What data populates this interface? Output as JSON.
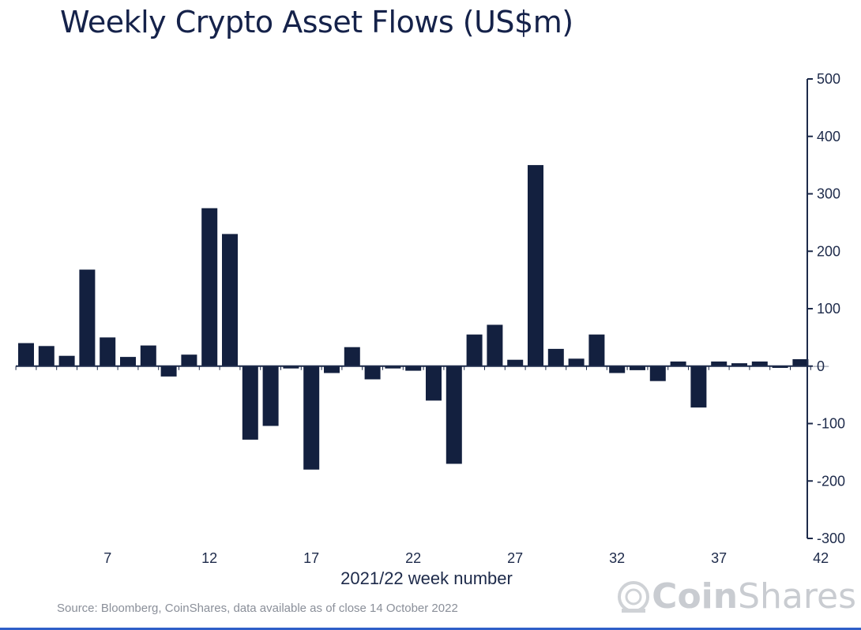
{
  "title": "Weekly Crypto Asset Flows (US$m)",
  "source": "Source: Bloomberg, CoinShares, data available as of close 14 October 2022",
  "logo": {
    "part1": "Coin",
    "part2": "Shares"
  },
  "colors": {
    "bar": "#13203f",
    "axis": "#1d2a4a",
    "text": "#1d2a4a"
  },
  "chart_data": {
    "type": "bar",
    "title": "Weekly Crypto Asset Flows (US$m)",
    "xlabel": "2021/22 week number",
    "ylabel": "",
    "ylim": [
      -300,
      500
    ],
    "yticks": [
      500,
      400,
      300,
      200,
      100,
      0,
      -100,
      -200,
      -300
    ],
    "y_axis_side": "right",
    "grid": false,
    "xticks": [
      7,
      12,
      17,
      22,
      27,
      32,
      37,
      42
    ],
    "categories": [
      3,
      4,
      5,
      6,
      7,
      8,
      9,
      10,
      11,
      12,
      13,
      14,
      15,
      16,
      17,
      18,
      19,
      20,
      21,
      22,
      23,
      24,
      25,
      26,
      27,
      28,
      29,
      30,
      31,
      32,
      33,
      34,
      35,
      36,
      37,
      38,
      39,
      40,
      41,
      42
    ],
    "values": [
      40,
      35,
      18,
      168,
      50,
      16,
      36,
      -18,
      20,
      275,
      230,
      -128,
      -104,
      -4,
      -180,
      -12,
      33,
      -23,
      -4,
      -8,
      -60,
      -170,
      55,
      72,
      11,
      350,
      30,
      13,
      55,
      -12,
      -7,
      -26,
      8,
      -72,
      8,
      5,
      8,
      -3,
      12,
      0
    ]
  }
}
